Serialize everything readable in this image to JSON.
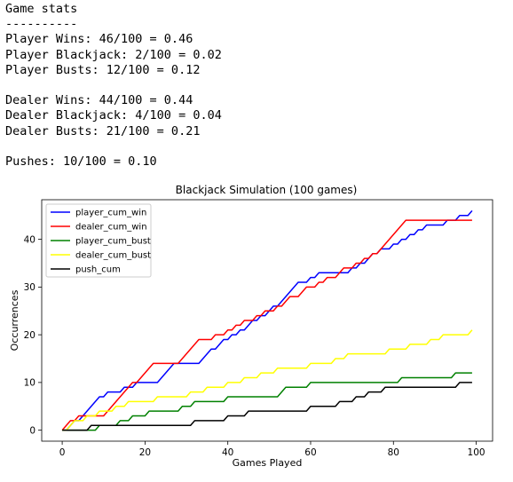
{
  "stats_text": {
    "header": "Game stats",
    "divider": "----------",
    "player_wins": "Player Wins: 46/100 = 0.46",
    "player_blackjack": "Player Blackjack: 2/100 = 0.02",
    "player_busts": "Player Busts: 12/100 = 0.12",
    "dealer_wins": "Dealer Wins: 44/100 = 0.44",
    "dealer_blackjack": "Dealer Blackjack: 4/100 = 0.04",
    "dealer_busts": "Dealer Busts: 21/100 = 0.21",
    "pushes": "Pushes: 10/100 = 0.10"
  },
  "chart_data": {
    "type": "line",
    "title": "Blackjack Simulation (100 games)",
    "xlabel": "Games Played",
    "ylabel": "Occurrences",
    "xlim": [
      -4.95,
      103.95
    ],
    "ylim": [
      -2.3,
      48.3
    ],
    "xticks": [
      0,
      20,
      40,
      60,
      80,
      100
    ],
    "yticks": [
      0,
      10,
      20,
      30,
      40
    ],
    "grid": false,
    "legend": "upper-left",
    "series": [
      {
        "name": "player_cum_win",
        "color": "#0000ff",
        "steps": [
          [
            0,
            0
          ],
          [
            2,
            1
          ],
          [
            3,
            2
          ],
          [
            5,
            3
          ],
          [
            6,
            4
          ],
          [
            7,
            5
          ],
          [
            8,
            6
          ],
          [
            9,
            7
          ],
          [
            11,
            8
          ],
          [
            15,
            9
          ],
          [
            18,
            10
          ],
          [
            24,
            11
          ],
          [
            25,
            12
          ],
          [
            26,
            13
          ],
          [
            27,
            14
          ],
          [
            34,
            15
          ],
          [
            35,
            16
          ],
          [
            36,
            17
          ],
          [
            38,
            18
          ],
          [
            39,
            19
          ],
          [
            41,
            20
          ],
          [
            43,
            21
          ],
          [
            45,
            22
          ],
          [
            46,
            23
          ],
          [
            48,
            24
          ],
          [
            50,
            25
          ],
          [
            51,
            26
          ],
          [
            53,
            27
          ],
          [
            54,
            28
          ],
          [
            55,
            29
          ],
          [
            56,
            30
          ],
          [
            57,
            31
          ],
          [
            60,
            32
          ],
          [
            62,
            33
          ],
          [
            70,
            34
          ],
          [
            72,
            35
          ],
          [
            74,
            36
          ],
          [
            75,
            37
          ],
          [
            77,
            38
          ],
          [
            80,
            39
          ],
          [
            82,
            40
          ],
          [
            84,
            41
          ],
          [
            86,
            42
          ],
          [
            88,
            43
          ],
          [
            93,
            44
          ],
          [
            96,
            45
          ],
          [
            99,
            46
          ]
        ]
      },
      {
        "name": "dealer_cum_win",
        "color": "#ff0000",
        "steps": [
          [
            0,
            0
          ],
          [
            1,
            1
          ],
          [
            2,
            2
          ],
          [
            4,
            3
          ],
          [
            11,
            4
          ],
          [
            12,
            5
          ],
          [
            13,
            6
          ],
          [
            14,
            7
          ],
          [
            15,
            8
          ],
          [
            16,
            9
          ],
          [
            17,
            10
          ],
          [
            19,
            11
          ],
          [
            20,
            12
          ],
          [
            21,
            13
          ],
          [
            22,
            14
          ],
          [
            29,
            15
          ],
          [
            30,
            16
          ],
          [
            31,
            17
          ],
          [
            32,
            18
          ],
          [
            33,
            19
          ],
          [
            37,
            20
          ],
          [
            40,
            21
          ],
          [
            42,
            22
          ],
          [
            44,
            23
          ],
          [
            47,
            24
          ],
          [
            49,
            25
          ],
          [
            52,
            26
          ],
          [
            54,
            27
          ],
          [
            55,
            28
          ],
          [
            58,
            29
          ],
          [
            59,
            30
          ],
          [
            62,
            31
          ],
          [
            64,
            32
          ],
          [
            67,
            33
          ],
          [
            68,
            34
          ],
          [
            71,
            35
          ],
          [
            73,
            36
          ],
          [
            75,
            37
          ],
          [
            77,
            38
          ],
          [
            78,
            39
          ],
          [
            79,
            40
          ],
          [
            80,
            41
          ],
          [
            81,
            42
          ],
          [
            82,
            43
          ],
          [
            83,
            44
          ]
        ]
      },
      {
        "name": "player_cum_bust",
        "color": "#008000",
        "steps": [
          [
            0,
            0
          ],
          [
            9,
            1
          ],
          [
            14,
            2
          ],
          [
            17,
            3
          ],
          [
            21,
            4
          ],
          [
            29,
            5
          ],
          [
            32,
            6
          ],
          [
            40,
            7
          ],
          [
            53,
            8
          ],
          [
            54,
            9
          ],
          [
            60,
            10
          ],
          [
            82,
            11
          ],
          [
            95,
            12
          ]
        ]
      },
      {
        "name": "dealer_cum_bust",
        "color": "#ffff00",
        "steps": [
          [
            0,
            0
          ],
          [
            2,
            1
          ],
          [
            3,
            2
          ],
          [
            6,
            3
          ],
          [
            9,
            4
          ],
          [
            13,
            5
          ],
          [
            16,
            6
          ],
          [
            23,
            7
          ],
          [
            31,
            8
          ],
          [
            35,
            9
          ],
          [
            40,
            10
          ],
          [
            44,
            11
          ],
          [
            48,
            12
          ],
          [
            52,
            13
          ],
          [
            60,
            14
          ],
          [
            66,
            15
          ],
          [
            69,
            16
          ],
          [
            79,
            17
          ],
          [
            84,
            18
          ],
          [
            89,
            19
          ],
          [
            92,
            20
          ],
          [
            99,
            21
          ]
        ]
      },
      {
        "name": "push_cum",
        "color": "#000000",
        "steps": [
          [
            0,
            0
          ],
          [
            7,
            1
          ],
          [
            32,
            2
          ],
          [
            40,
            3
          ],
          [
            45,
            4
          ],
          [
            60,
            5
          ],
          [
            67,
            6
          ],
          [
            71,
            7
          ],
          [
            74,
            8
          ],
          [
            78,
            9
          ],
          [
            96,
            10
          ]
        ]
      }
    ]
  }
}
